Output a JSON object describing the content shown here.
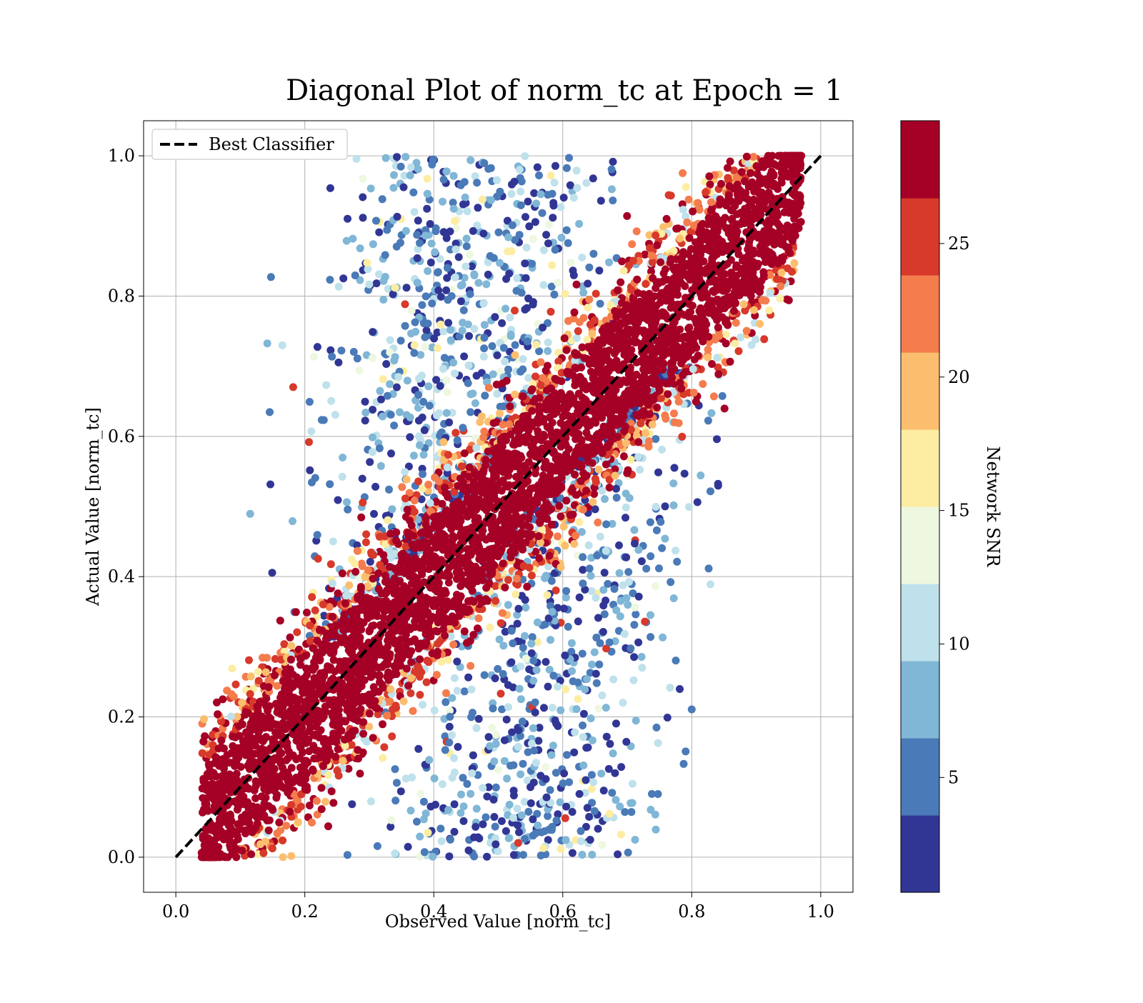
{
  "chart_data": {
    "type": "scatter",
    "title": "Diagonal Plot of norm_tc at Epoch = 1",
    "xlabel": "Observed Value [norm_tc]",
    "ylabel": "Actual Value [norm_tc]",
    "xlim": [
      -0.05,
      1.05
    ],
    "ylim": [
      -0.05,
      1.05
    ],
    "xticks": [
      0.0,
      0.2,
      0.4,
      0.6,
      0.8,
      1.0
    ],
    "xtick_labels": [
      "0.0",
      "0.2",
      "0.4",
      "0.6",
      "0.8",
      "1.0"
    ],
    "yticks": [
      0.0,
      0.2,
      0.4,
      0.6,
      0.8,
      1.0
    ],
    "ytick_labels": [
      "0.0",
      "0.2",
      "0.4",
      "0.6",
      "0.8",
      "1.0"
    ],
    "grid": true,
    "legend": {
      "placement": "upper-left",
      "entries": [
        {
          "label": "Best Classifier",
          "style": "dashed",
          "color": "#000000"
        }
      ]
    },
    "reference_line": {
      "label": "Best Classifier",
      "x": [
        0.0,
        1.0
      ],
      "y": [
        0.0,
        1.0
      ],
      "style": "dashed",
      "color": "#000000"
    },
    "colorbar": {
      "label": "Network SNR",
      "range": [
        0.7,
        29.6
      ],
      "ticks": [
        5,
        10,
        15,
        20,
        25
      ],
      "tick_labels": [
        "5",
        "10",
        "15",
        "20",
        "25"
      ],
      "bins": [
        "#313695",
        "#4a7ab7",
        "#80b6d6",
        "#bfe1ec",
        "#eef7e0",
        "#fdeda2",
        "#fbbe6f",
        "#f47c4d",
        "#d7392b",
        "#a50026"
      ]
    },
    "point_distribution": {
      "description_note": "",
      "diagonal_band_halfwidth": 0.09,
      "high_snr_color": "#a50026",
      "low_snr_regions": [
        {
          "x_range": [
            0.4,
            0.6
          ],
          "y_range": [
            0.6,
            1.0
          ]
        },
        {
          "x_range": [
            0.4,
            0.6
          ],
          "y_range": [
            0.0,
            0.4
          ]
        }
      ]
    }
  }
}
